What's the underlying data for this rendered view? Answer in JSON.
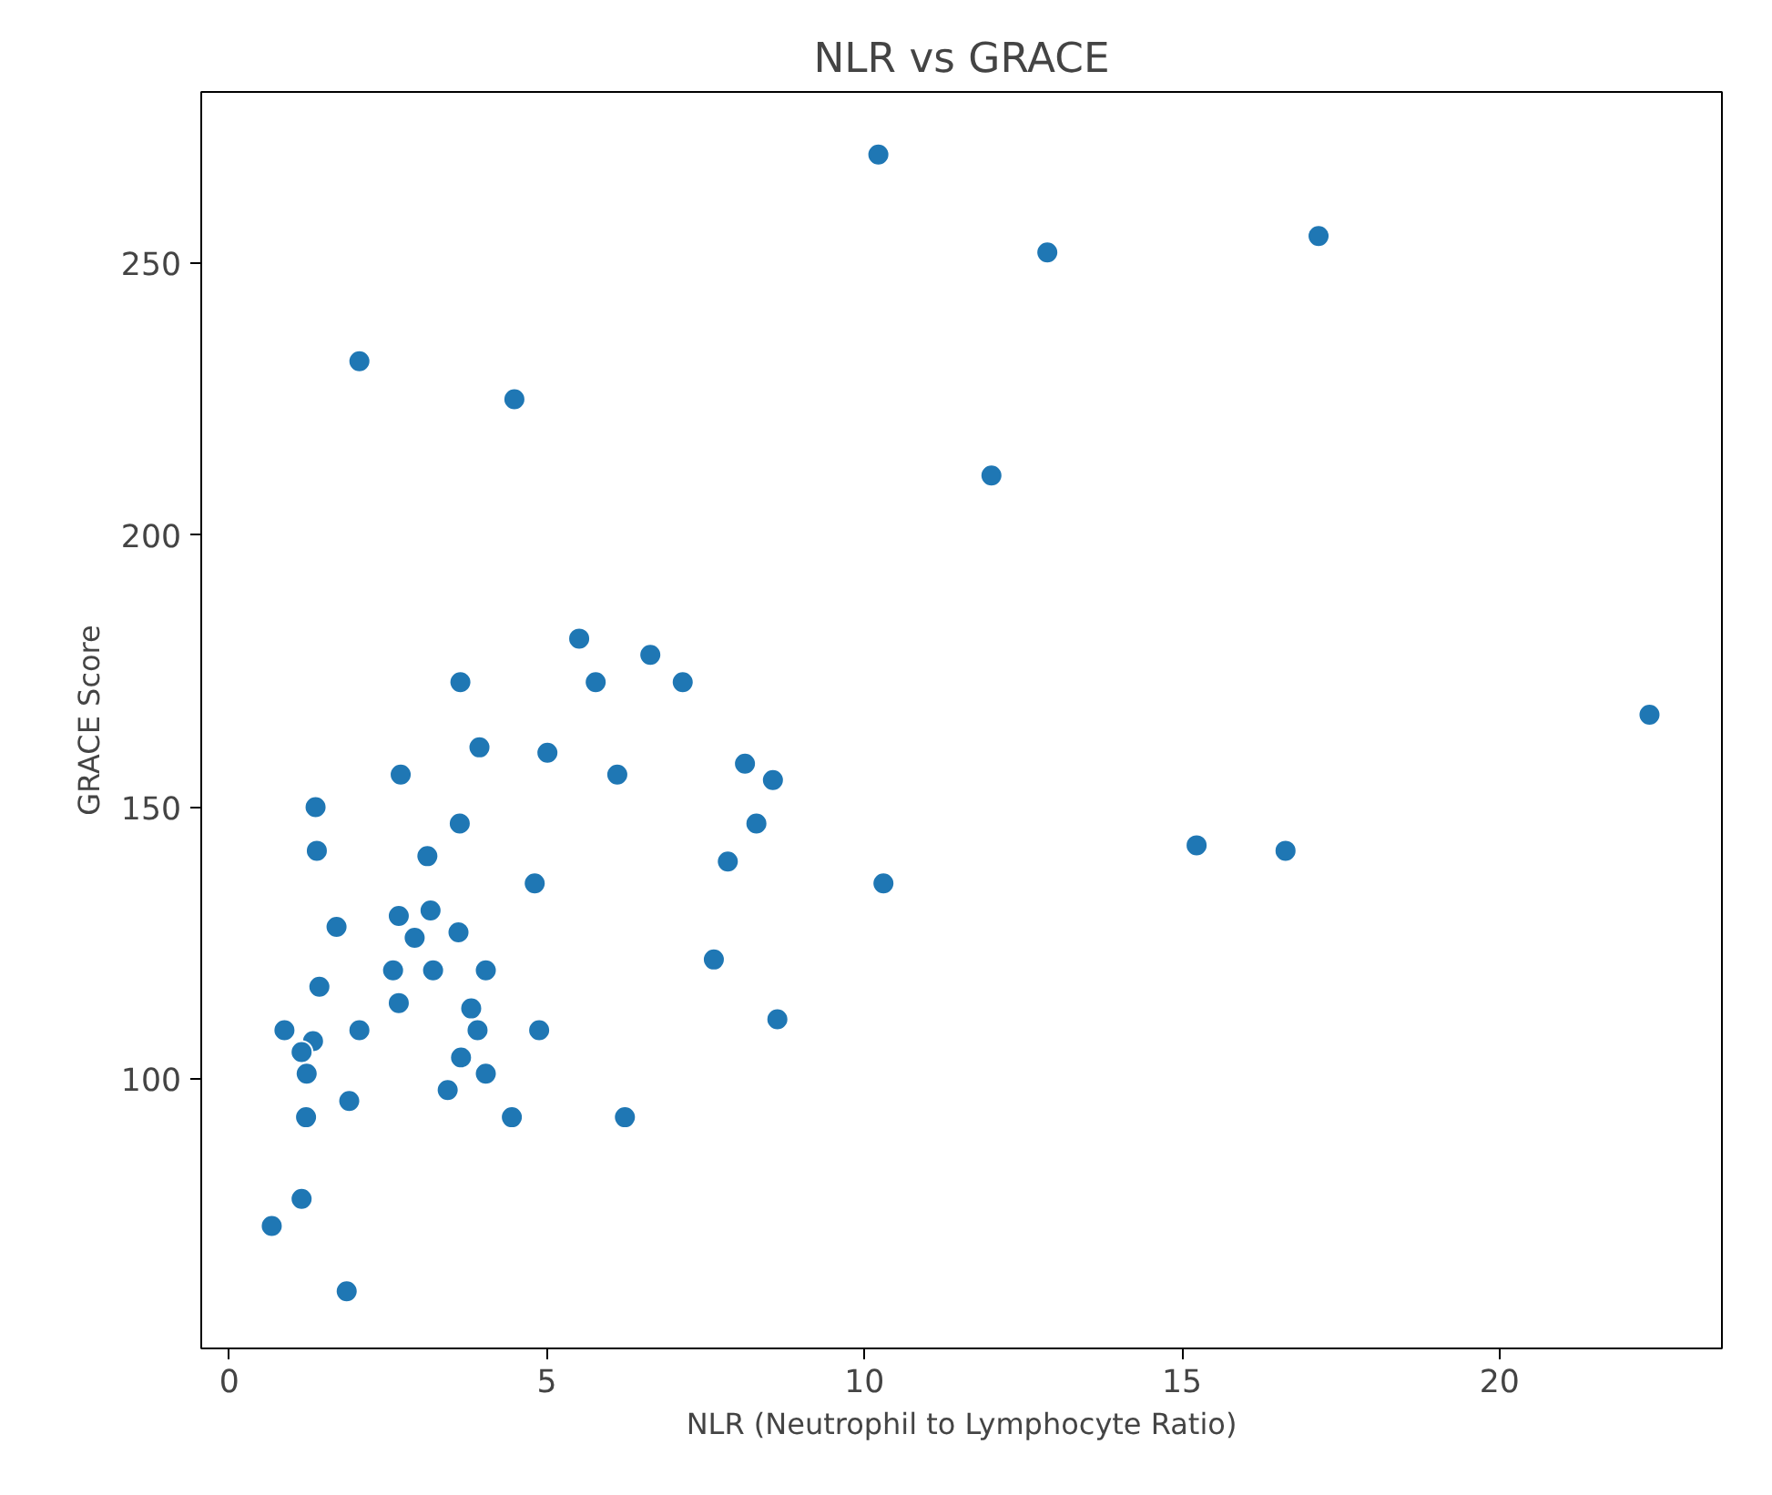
{
  "chart_data": {
    "type": "scatter",
    "title": "NLR vs GRACE",
    "xlabel": "NLR (Neutrophil to Lymphocyte Ratio)",
    "ylabel": "GRACE Score",
    "xlim": [
      -0.44,
      23.5
    ],
    "ylim": [
      50.5,
      281.5
    ],
    "xticks": [
      0,
      5,
      10,
      15,
      20
    ],
    "yticks": [
      100,
      150,
      200,
      250
    ],
    "grid": false,
    "marker": "circle",
    "series": [
      {
        "color": "#1f77b4",
        "x": [
          5.51,
          6.63,
          3.64,
          5.77,
          7.14,
          3.94,
          5.01,
          2.7,
          6.11,
          8.12,
          8.56,
          1.36,
          3.63,
          8.3,
          1.38,
          3.12,
          7.85,
          4.81,
          1.69,
          2.67,
          3.17,
          2.92,
          3.61,
          7.63,
          1.42,
          2.58,
          3.21,
          4.04,
          2.67,
          3.81,
          3.91,
          0.87,
          2.05,
          4.88,
          8.63,
          1.32,
          1.14,
          1.22,
          3.65,
          4.04,
          3.44,
          1.89,
          1.21,
          4.45,
          6.23,
          1.14,
          0.67,
          1.85,
          10.22,
          12.88,
          17.15,
          2.05,
          4.49,
          12.0,
          10.3,
          15.23,
          16.63,
          22.36
        ],
        "values": [
          181,
          178,
          173,
          173,
          173,
          161,
          160,
          156,
          156,
          158,
          155,
          150,
          147,
          147,
          142,
          141,
          140,
          136,
          128,
          130,
          131,
          126,
          127,
          122,
          117,
          120,
          120,
          120,
          114,
          113,
          109,
          109,
          109,
          109,
          111,
          107,
          105,
          101,
          104,
          101,
          98,
          96,
          93,
          93,
          93,
          78,
          73,
          61,
          270,
          252,
          255,
          232,
          225,
          211,
          136,
          143,
          142,
          167
        ]
      }
    ]
  }
}
